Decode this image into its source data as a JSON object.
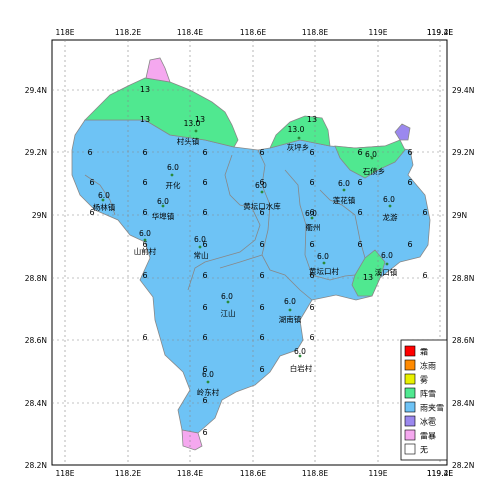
{
  "axes": {
    "x_ticks": [
      "118E",
      "118.2E",
      "118.4E",
      "118.6E",
      "118.8E",
      "119E",
      "119.2E",
      "119.4E"
    ],
    "y_ticks": [
      "29.4N",
      "29.2N",
      "29N",
      "28.8N",
      "28.6N",
      "28.4N",
      "28.2N"
    ]
  },
  "colors": {
    "rain_snow": "#6ec3f5",
    "shower_snow": "#50e890",
    "hail": "#9b88ee",
    "thunderstorm": "#f5a8ef"
  },
  "regions": [
    {
      "id": "north-hill",
      "type": "shower_snow"
    },
    {
      "id": "northeast-patch",
      "type": "shower_snow"
    },
    {
      "id": "east-patch",
      "type": "shower_snow"
    },
    {
      "id": "south-tip",
      "type": "thunderstorm"
    },
    {
      "id": "north-tip",
      "type": "thunderstorm"
    },
    {
      "id": "east-tip",
      "type": "hail"
    }
  ],
  "labels": [
    {
      "id": "cun-tou-zhen",
      "name": "村头镇",
      "value": "13.0"
    },
    {
      "id": "hui-ping-xiang",
      "name": "灰坪乡",
      "value": "13.0"
    },
    {
      "id": "kai-hua",
      "name": "开化",
      "value": "6.0"
    },
    {
      "id": "shi-dan-xiang",
      "name": "石债乡",
      "value": "6.0"
    },
    {
      "id": "yang-lin-zhen",
      "name": "杨林镇",
      "value": "6.0"
    },
    {
      "id": "hua-bu-zhen",
      "name": "华埠镇",
      "value": "6.0"
    },
    {
      "id": "huang-tan-kou-shui-ku",
      "name": "黄坛口水库",
      "value": "6.0"
    },
    {
      "id": "lian-hua-zhen",
      "name": "莲花镇",
      "value": "6.0"
    },
    {
      "id": "long-you",
      "name": "龙游",
      "value": "6.0"
    },
    {
      "id": "qu-zhou",
      "name": "衢州",
      "value": "6.0"
    },
    {
      "id": "shan-qian-cun",
      "name": "山前村",
      "value": "6.0"
    },
    {
      "id": "chang-shan",
      "name": "常山",
      "value": "6.0"
    },
    {
      "id": "huang-tan-kou-cun",
      "name": "黄坛口村",
      "value": "6.0"
    },
    {
      "id": "xi-kou-zhen",
      "name": "溪口镇",
      "value": "6.0"
    },
    {
      "id": "jiang-shan",
      "name": "江山",
      "value": "6.0"
    },
    {
      "id": "hu-nan-zhen",
      "name": "湖南镇",
      "value": "6.0"
    },
    {
      "id": "bai-yan-cun",
      "name": "白岩村",
      "value": "6.0"
    },
    {
      "id": "xin-dong-cun",
      "name": "岭东村",
      "value": "6.0"
    }
  ],
  "field_values": {
    "six": "6",
    "thirteen": "13"
  },
  "legend": {
    "items": [
      {
        "id": "legend-freezing-fog",
        "label": "霜",
        "color": "#ff0000"
      },
      {
        "id": "legend-freezing-rain",
        "label": "冻雨",
        "color": "#ff8a00"
      },
      {
        "id": "legend-fog",
        "label": "雾",
        "color": "#e8f000"
      },
      {
        "id": "legend-shower-snow",
        "label": "阵雪",
        "color": "#50e890"
      },
      {
        "id": "legend-rain-snow",
        "label": "雨夹雪",
        "color": "#6ec3f5"
      },
      {
        "id": "legend-hail",
        "label": "冰雹",
        "color": "#9b88ee"
      },
      {
        "id": "legend-thunderstorm",
        "label": "雷暴",
        "color": "#f5a8ef"
      },
      {
        "id": "legend-none",
        "label": "无",
        "color": "#ffffff"
      }
    ]
  }
}
